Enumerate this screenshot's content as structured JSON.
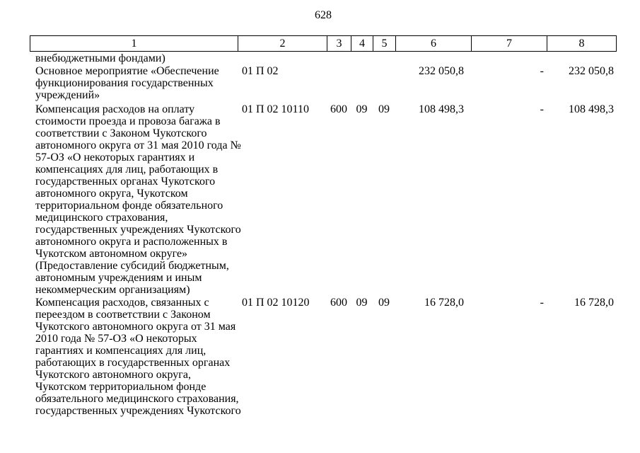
{
  "page": {
    "number": "628"
  },
  "table": {
    "header": [
      "1",
      "2",
      "3",
      "4",
      "5",
      "6",
      "7",
      "8"
    ],
    "rows": [
      {
        "c1": [
          "внебюджетными фондами)"
        ],
        "c2": "",
        "c3": "",
        "c4": "",
        "c5": "",
        "c6": "",
        "c7": "",
        "c8": ""
      },
      {
        "c1": [
          "Основное мероприятие «Обеспечение",
          "функционирования государственных",
          "учреждений»"
        ],
        "c2": "01 П 02",
        "c3": "",
        "c4": "",
        "c5": "",
        "c6": "232 050,8",
        "c7": "-",
        "c8": "232 050,8"
      },
      {
        "c1": [
          "Компенсация расходов на оплату",
          "стоимости проезда и провоза багажа в",
          "соответствии с Законом Чукотского",
          "автономного округа от 31 мая 2010 года №",
          "57-ОЗ «О некоторых гарантиях и",
          "компенсациях для лиц, работающих в",
          "государственных органах Чукотского",
          "автономного округа, Чукотском",
          "территориальном фонде обязательного",
          "медицинского страхования,",
          "государственных учреждениях Чукотского",
          "автономного округа и расположенных в",
          "Чукотском автономном округе»",
          "(Предоставление субсидий бюджетным,",
          "автономным учреждениям и иным",
          "некоммерческим организациям)"
        ],
        "c2": "01 П 02 10110",
        "c3": "600",
        "c4": "09",
        "c5": "09",
        "c6": "108 498,3",
        "c7": "-",
        "c8": "108 498,3"
      },
      {
        "c1": [
          "Компенсация расходов, связанных с",
          "переездом в соответствии с Законом",
          "Чукотского автономного округа от 31 мая",
          "2010 года № 57-ОЗ «О некоторых",
          "гарантиях и компенсациях для лиц,",
          "работающих в государственных органах",
          "Чукотского автономного округа,",
          "Чукотском территориальном фонде",
          "обязательного медицинского страхования,",
          "государственных учреждениях Чукотского"
        ],
        "c2": "01 П 02 10120",
        "c3": "600",
        "c4": "09",
        "c5": "09",
        "c6": "16 728,0",
        "c7": "-",
        "c8": "16 728,0"
      }
    ]
  }
}
